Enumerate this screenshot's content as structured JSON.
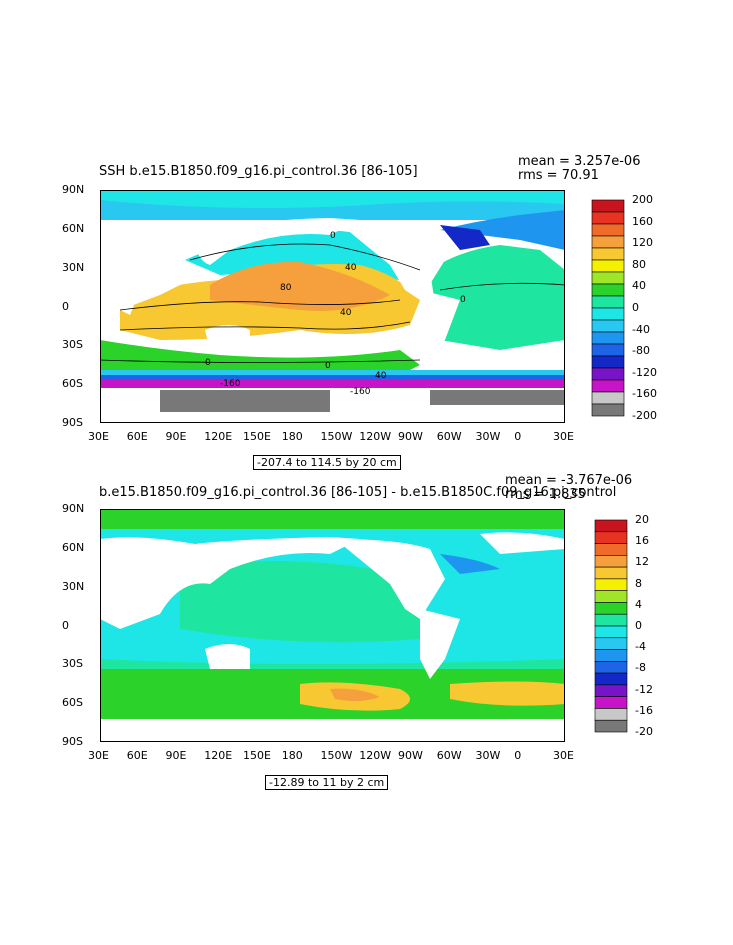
{
  "chart_data": [
    {
      "type": "heatmap",
      "title": "SSH b.e15.B1850.f09_g16.pi_control.36 [86-105]",
      "stats": {
        "mean": "mean = 3.257e-06",
        "rms": "rms = 70.91"
      },
      "x_ticks": [
        "30E",
        "60E",
        "90E",
        "120E",
        "150E",
        "180",
        "150W",
        "120W",
        "90W",
        "60W",
        "30W",
        "0",
        "30E"
      ],
      "y_ticks": [
        "90N",
        "60N",
        "30N",
        "0",
        "30S",
        "60S",
        "90S"
      ],
      "range_label": "-207.4 to 114.5 by 20 cm",
      "colorbar": {
        "labels": [
          "200",
          "160",
          "120",
          "80",
          "40",
          "0",
          "-40",
          "-80",
          "-120",
          "-160",
          "-200"
        ],
        "colors": [
          "#c8141e",
          "#e83222",
          "#f06a2a",
          "#f5a03c",
          "#f7c832",
          "#f5f000",
          "#a0e628",
          "#2ad22a",
          "#1ee6a0",
          "#1ee6e6",
          "#28c8f0",
          "#1e96f0",
          "#1e64e6",
          "#1428c8",
          "#7814c8",
          "#c814c8",
          "#c8c8c8",
          "#787878"
        ]
      },
      "contour_labels": [
        "0",
        "40",
        "80",
        "40",
        "0",
        "0",
        "0",
        "40",
        "-160",
        "-160"
      ]
    },
    {
      "type": "heatmap",
      "title": "b.e15.B1850.f09_g16.pi_control.36 [86-105] - b.e15.B1850C.f09_g16.pi_control",
      "stats": {
        "mean": "mean = -3.767e-06",
        "rms": "rms = 1.835"
      },
      "x_ticks": [
        "30E",
        "60E",
        "90E",
        "120E",
        "150E",
        "180",
        "150W",
        "120W",
        "90W",
        "60W",
        "30W",
        "0",
        "30E"
      ],
      "y_ticks": [
        "90N",
        "60N",
        "30N",
        "0",
        "30S",
        "60S",
        "90S"
      ],
      "range_label": "-12.89 to 11 by 2 cm",
      "colorbar": {
        "labels": [
          "20",
          "16",
          "12",
          "8",
          "4",
          "0",
          "-4",
          "-8",
          "-12",
          "-16",
          "-20"
        ],
        "colors": [
          "#c8141e",
          "#e83222",
          "#f06a2a",
          "#f5a03c",
          "#f7c832",
          "#f5f000",
          "#a0e628",
          "#2ad22a",
          "#1ee6a0",
          "#1ee6e6",
          "#28c8f0",
          "#1e96f0",
          "#1e64e6",
          "#1428c8",
          "#7814c8",
          "#c814c8",
          "#c8c8c8",
          "#787878"
        ]
      }
    }
  ]
}
